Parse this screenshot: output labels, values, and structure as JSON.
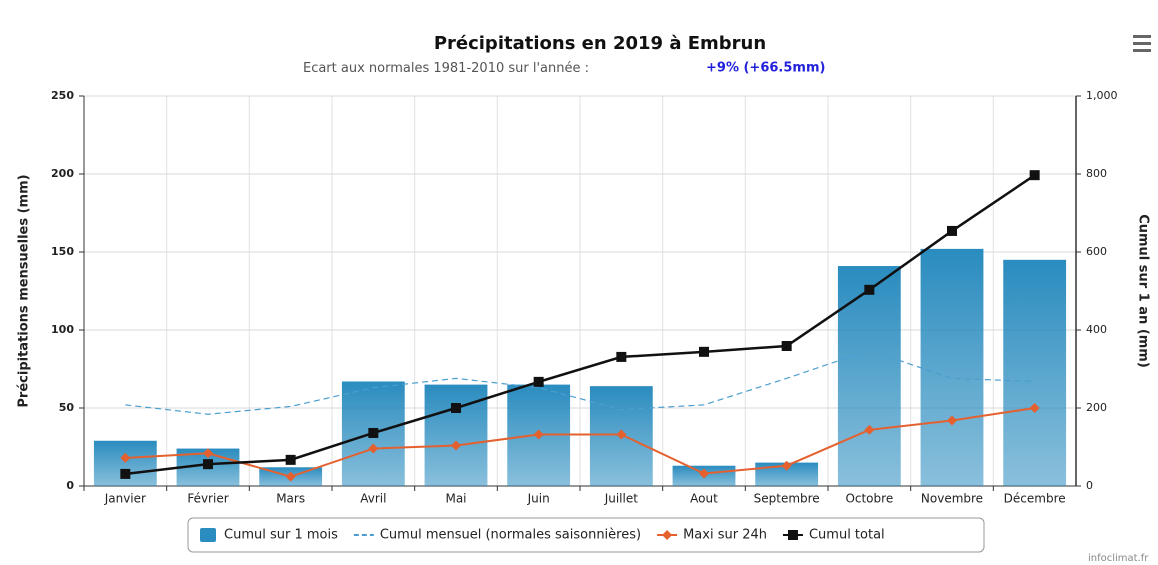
{
  "chart_data": {
    "type": "bar",
    "title": "Précipitations en 2019 à Embrun",
    "subtitle": "Ecart aux normales 1981-2010 sur l'année : ",
    "subtitle_highlight": "+9% (+66.5mm)",
    "credit": "infoclimat.fr",
    "ylabel": "Précipitations mensuelles (mm)",
    "y2label": "Cumul sur 1 an (mm)",
    "categories": [
      "Janvier",
      "Février",
      "Mars",
      "Avril",
      "Mai",
      "Juin",
      "Juillet",
      "Aout",
      "Septembre",
      "Octobre",
      "Novembre",
      "Décembre"
    ],
    "ylim": [
      0,
      250
    ],
    "yticks": [
      0,
      50,
      100,
      150,
      200,
      250
    ],
    "y2lim": [
      0,
      1000
    ],
    "y2ticks": [
      0,
      200,
      400,
      600,
      800,
      {
        "value": 1000,
        "label": "1,000"
      }
    ],
    "grid": true,
    "legend": "bottom",
    "series": [
      {
        "name": "Cumul sur 1 mois",
        "type": "bar",
        "color": "#2a8cbf",
        "values": [
          29,
          24,
          12,
          67,
          65,
          65,
          64,
          13,
          15,
          141,
          152,
          145
        ]
      },
      {
        "name": "Cumul mensuel (normales saisonnières)",
        "type": "line",
        "dash": true,
        "color": "#4a9ed0",
        "values": [
          52,
          46,
          51,
          63,
          69,
          63,
          49,
          52,
          69,
          87,
          69,
          67
        ]
      },
      {
        "name": "Maxi sur 24h",
        "type": "line",
        "marker": "diamond",
        "color": "#e4612f",
        "values": [
          18,
          21,
          6,
          24,
          26,
          33,
          33,
          8,
          13,
          36,
          42,
          50
        ]
      },
      {
        "name": "Cumul total",
        "type": "line",
        "marker": "square",
        "axis": "y2",
        "color": "#111111",
        "values": [
          31,
          56,
          67,
          136,
          200,
          267,
          331,
          344,
          359,
          503,
          654,
          797
        ]
      }
    ]
  }
}
